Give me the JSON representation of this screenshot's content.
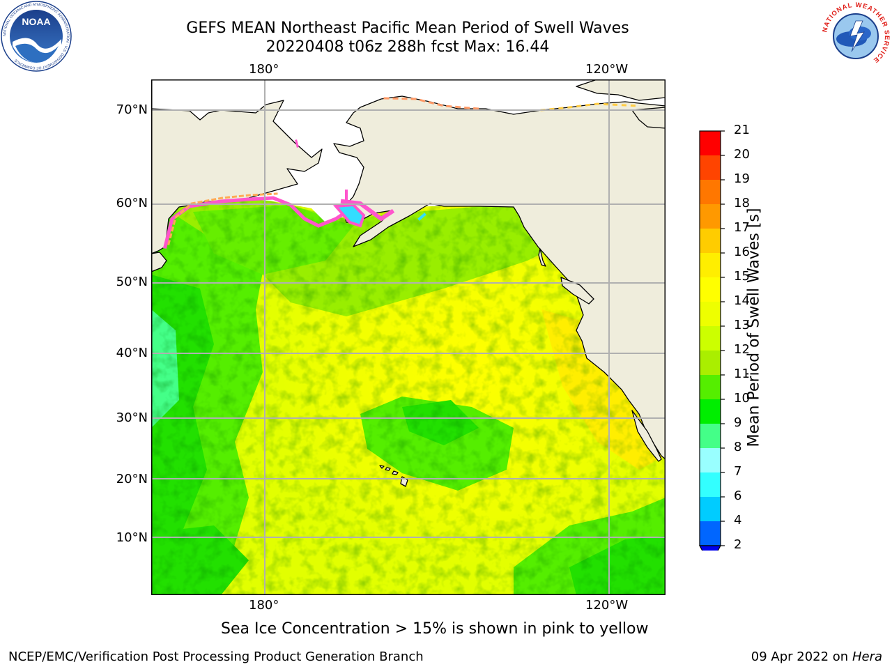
{
  "header": {
    "title_line1": "GEFS MEAN Northeast Pacific Mean Period of Swell Waves",
    "title_line2": "20220408 t06z 288h fcst   Max: 16.44"
  },
  "logos": {
    "noaa_text": "NOAA",
    "noaa_ring_text": "NATIONAL OCEANIC AND ATMOSPHERIC ADMINISTRATION · U.S. DEPARTMENT OF COMMERCE",
    "nws_ring_text": "NATIONAL WEATHER SERVICE"
  },
  "map": {
    "lon_labels": [
      "180°",
      "120°W"
    ],
    "lat_labels": [
      "70°N",
      "60°N",
      "50°N",
      "40°N",
      "30°N",
      "20°N",
      "10°N"
    ],
    "grid": true,
    "colors": {
      "land": "#efeddc",
      "ice_mask": "#ffffff",
      "sea_ice": "#ff55cc",
      "grid": "#b0b0b0"
    }
  },
  "colorbar": {
    "label": "Mean Period of Swell Waves [s]",
    "ticks": [
      "2",
      "4",
      "6",
      "7",
      "8",
      "9",
      "10",
      "11",
      "12",
      "13",
      "14",
      "15",
      "16",
      "17",
      "18",
      "19",
      "20",
      "21"
    ],
    "colors": [
      "#0066ff",
      "#00ccff",
      "#33ffff",
      "#99ffff",
      "#44ff88",
      "#00ee00",
      "#55ee00",
      "#aaee00",
      "#ccff00",
      "#eeff00",
      "#ffff00",
      "#ffee00",
      "#ffcc00",
      "#ff9900",
      "#ff7700",
      "#ff4400",
      "#ff0000"
    ],
    "under_color": "#0000ee"
  },
  "notes": {
    "sea_ice": "Sea Ice Concentration > 15% is shown in pink to yellow"
  },
  "footer": {
    "left": "NCEP/EMC/Verification Post Processing Product Generation Branch",
    "date": "09 Apr 2022 on ",
    "machine": "Hera"
  }
}
